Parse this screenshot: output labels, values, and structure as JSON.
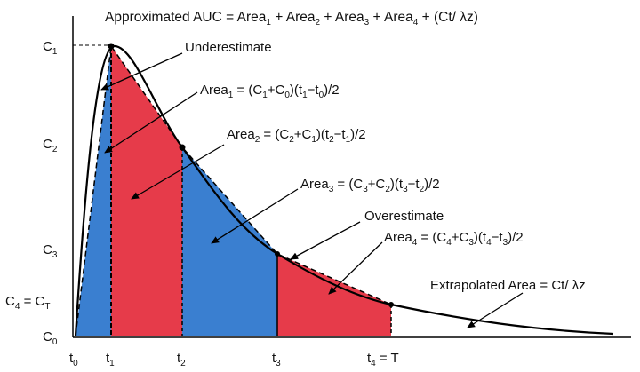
{
  "title": {
    "prefix": "Approximated AUC = Area",
    "terms": [
      "1",
      "2",
      "3",
      "4"
    ],
    "suffix": " + (Ct/ λz)"
  },
  "y_labels": [
    {
      "main": "C",
      "sub": "1"
    },
    {
      "main": "C",
      "sub": "2"
    },
    {
      "main": "C",
      "sub": "3"
    },
    {
      "main": "C",
      "sub": "4",
      "tail": " = C",
      "tail_sub": "T"
    },
    {
      "main": "C",
      "sub": "0"
    }
  ],
  "x_labels": [
    {
      "main": "t",
      "sub": "0"
    },
    {
      "main": "t",
      "sub": "1"
    },
    {
      "main": "t",
      "sub": "2"
    },
    {
      "main": "t",
      "sub": "3"
    },
    {
      "main": "t",
      "sub": "4",
      "tail": " = T"
    }
  ],
  "annotations": {
    "underestimate": "Underestimate",
    "overestimate": "Overestimate",
    "area1": [
      "Area",
      "1",
      " = (C",
      "1",
      "+C",
      "0",
      ")(t",
      "1",
      "−t",
      "0",
      ")/2"
    ],
    "area2": [
      "Area",
      "2",
      " = (C",
      "2",
      "+C",
      "1",
      ")(t",
      "2",
      "−t",
      "1",
      ")/2"
    ],
    "area3": [
      "Area",
      "3",
      " = (C",
      "3",
      "+C",
      "2",
      ")(t",
      "3",
      "−t",
      "2",
      ")/2"
    ],
    "area4": [
      "Area",
      "4",
      " = (C",
      "4",
      "+C",
      "3",
      ")(t",
      "4",
      "−t",
      "3",
      ")/2"
    ],
    "extrapolated": "Extrapolated Area = Ct/ λz"
  },
  "colors": {
    "blue": "#3a7fd0",
    "red": "#e63b4a",
    "curve": "#000000"
  }
}
